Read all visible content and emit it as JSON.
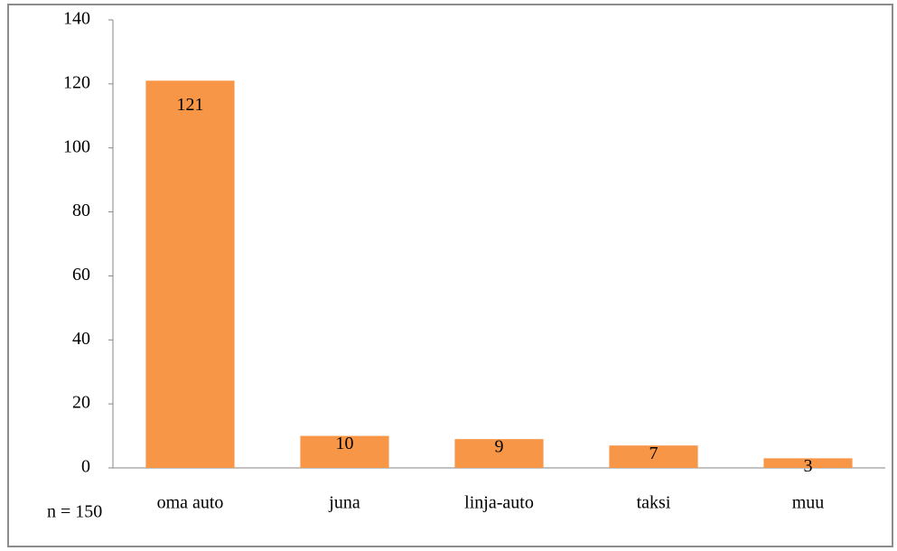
{
  "chart_data": {
    "type": "bar",
    "categories": [
      "oma auto",
      "juna",
      "linja-auto",
      "taksi",
      "muu"
    ],
    "values": [
      121,
      10,
      9,
      7,
      3
    ],
    "color": "#f79646",
    "ylim": [
      0,
      140
    ],
    "yticks": [
      0,
      20,
      40,
      60,
      80,
      100,
      120,
      140
    ],
    "grid": false,
    "annotation": "n = 150"
  }
}
